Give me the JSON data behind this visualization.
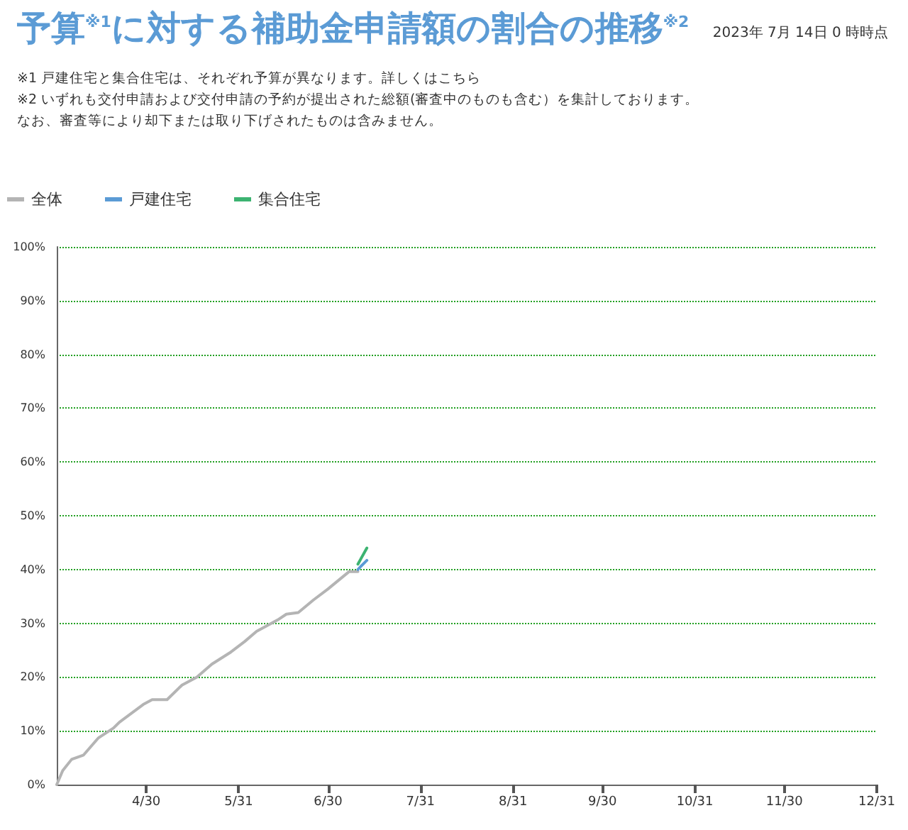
{
  "chart_data": {
    "type": "line",
    "title": "予算$^{※1}$に対する補助金申請額の割合の推移$^{※2}$",
    "subtitle": "2023年 7月 14日 0 時時点",
    "annotations": [
      "※1 戸建住宅と集合住宅は、それぞれ予算が異なります。詳しくはこちら",
      "※2 いずれも交付申請および交付申請の予約が提出された総額(審査中のものも含む）を集計しております。",
      "なお、審査等により却下または取り下げされたものは含みません。"
    ],
    "series": [
      {
        "name": "全体",
        "color": "#b4b4b4",
        "x": [
          "2023-03-31",
          "2023-04-02",
          "2023-04-05",
          "2023-04-09",
          "2023-04-14",
          "2023-04-19",
          "2023-04-21",
          "2023-04-29",
          "2023-05-02",
          "2023-05-07",
          "2023-05-12",
          "2023-05-17",
          "2023-05-22",
          "2023-05-28",
          "2023-06-02",
          "2023-06-06",
          "2023-06-13",
          "2023-06-16",
          "2023-06-20",
          "2023-06-25",
          "2023-06-30",
          "2023-07-07",
          "2023-07-10"
        ],
        "values": [
          0,
          2.6,
          4.7,
          5.5,
          8.7,
          10.5,
          11.6,
          14.9,
          15.8,
          15.8,
          18.5,
          20,
          22.4,
          24.5,
          26.6,
          28.5,
          30.6,
          31.7,
          32,
          34.3,
          36.4,
          39.6,
          39.6
        ]
      },
      {
        "name": "戸建住宅",
        "color": "#5b9bd5",
        "x": [
          "2023-07-10",
          "2023-07-11",
          "2023-07-13"
        ],
        "values": [
          40,
          40.6,
          41.7
        ]
      },
      {
        "name": "集合住宅",
        "color": "#3cb371",
        "x": [
          "2023-07-10",
          "2023-07-11",
          "2023-07-13"
        ],
        "values": [
          41,
          42,
          44
        ]
      }
    ],
    "xlim": [
      "2023-03-31",
      "2023-12-31"
    ],
    "xticks": [
      {
        "value": "2023-04-30",
        "label": "4/30"
      },
      {
        "value": "2023-05-31",
        "label": "5/31"
      },
      {
        "value": "2023-06-30",
        "label": "6/30"
      },
      {
        "value": "2023-07-31",
        "label": "7/31"
      },
      {
        "value": "2023-08-31",
        "label": "8/31"
      },
      {
        "value": "2023-09-30",
        "label": "9/30"
      },
      {
        "value": "2023-10-31",
        "label": "10/31"
      },
      {
        "value": "2023-11-30",
        "label": "11/30"
      },
      {
        "value": "2023-12-31",
        "label": "12/31"
      }
    ],
    "ylim": [
      0,
      100
    ],
    "yticks": [
      {
        "value": 0,
        "label": "0%"
      },
      {
        "value": 10,
        "label": "10%"
      },
      {
        "value": 20,
        "label": "20%"
      },
      {
        "value": 30,
        "label": "30%"
      },
      {
        "value": 40,
        "label": "40%"
      },
      {
        "value": 50,
        "label": "50%"
      },
      {
        "value": 60,
        "label": "60%"
      },
      {
        "value": 70,
        "label": "70%"
      },
      {
        "value": 80,
        "label": "80%"
      },
      {
        "value": 90,
        "label": "90%"
      },
      {
        "value": 100,
        "label": "100%"
      }
    ],
    "grid": "y",
    "legend": "top left",
    "marker": "none",
    "line_style": "solid"
  }
}
